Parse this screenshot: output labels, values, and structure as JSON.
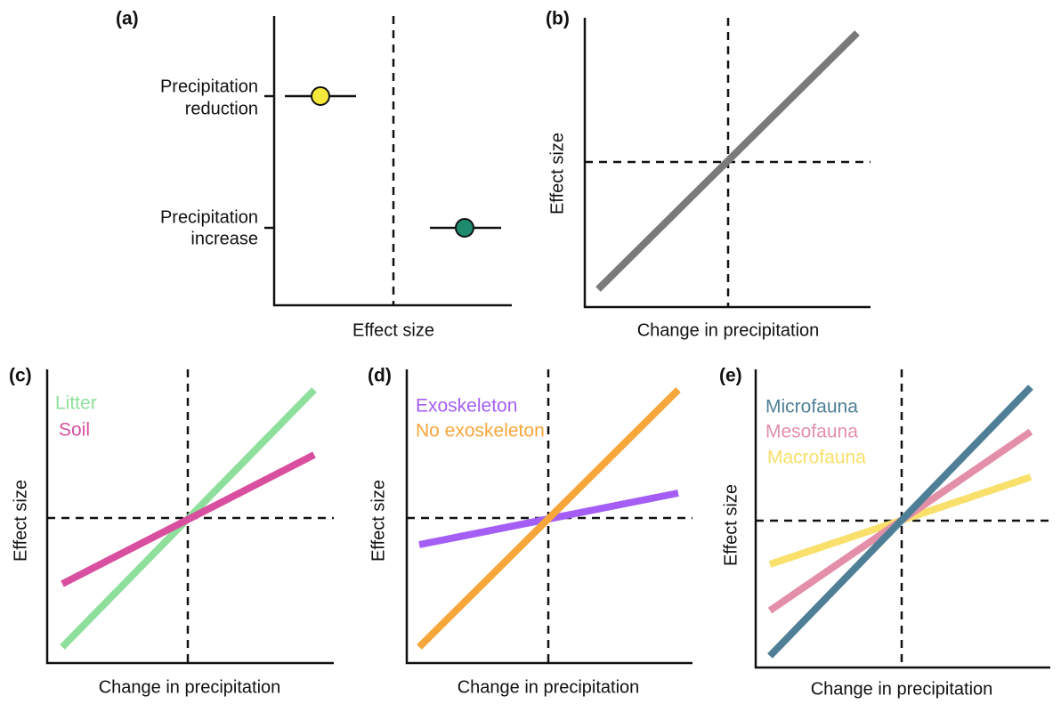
{
  "panels": [
    {
      "letter": "(a)",
      "x_label": "Effect size",
      "rows": [
        {
          "label": [
            "Precipitation",
            "reduction"
          ],
          "color": "#f5e83a"
        },
        {
          "label": [
            "Precipitation",
            "increase"
          ],
          "color": "#1e8a6e"
        }
      ]
    },
    {
      "letter": "(b)",
      "x_label": "Change in precipitation",
      "y_label": "Effect size",
      "series": [
        {
          "color": "#7a7a7a"
        }
      ]
    },
    {
      "letter": "(c)",
      "x_label": "Change in precipitation",
      "y_label": "Effect size",
      "series": [
        {
          "name": "Litter",
          "color": "#8fdf9c"
        },
        {
          "name": "Soil",
          "color": "#d94fa0"
        }
      ]
    },
    {
      "letter": "(d)",
      "x_label": "Change in precipitation",
      "y_label": "Effect size",
      "series": [
        {
          "name": "Exoskeleton",
          "color": "#a55ef5"
        },
        {
          "name": "No exoskeleton",
          "color": "#f7a63a"
        }
      ]
    },
    {
      "letter": "(e)",
      "x_label": "Change in precipitation",
      "y_label": "Effect size",
      "series": [
        {
          "name": "Microfauna",
          "color": "#4f7f96"
        },
        {
          "name": "Mesofauna",
          "color": "#e38fa8"
        },
        {
          "name": "Macrofauna",
          "color": "#f8e06a"
        }
      ]
    }
  ]
}
